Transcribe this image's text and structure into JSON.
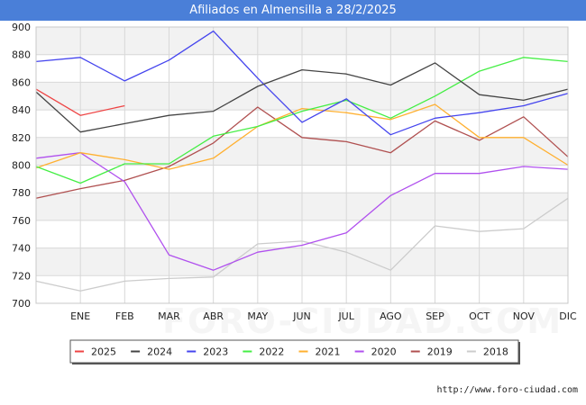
{
  "chart_data": {
    "type": "line",
    "title": "Afiliados en Almensilla a 28/2/2025",
    "categories": [
      "",
      "ENE",
      "FEB",
      "MAR",
      "ABR",
      "MAY",
      "JUN",
      "JUL",
      "AGO",
      "SEP",
      "OCT",
      "NOV",
      "DIC"
    ],
    "ylim": [
      700,
      900
    ],
    "yticks": [
      700,
      720,
      740,
      760,
      780,
      800,
      820,
      840,
      860,
      880,
      900
    ],
    "grid": true,
    "legend_position": "bottom",
    "series": [
      {
        "name": "2025",
        "color": "#ee4444",
        "values": [
          855,
          836,
          843,
          null,
          null,
          null,
          null,
          null,
          null,
          null,
          null,
          null,
          null
        ]
      },
      {
        "name": "2024",
        "color": "#444444",
        "values": [
          853,
          824,
          830,
          836,
          839,
          857,
          869,
          866,
          858,
          874,
          851,
          847,
          855
        ]
      },
      {
        "name": "2023",
        "color": "#4444ee",
        "values": [
          875,
          878,
          861,
          876,
          897,
          863,
          831,
          848,
          822,
          834,
          838,
          843,
          852
        ]
      },
      {
        "name": "2022",
        "color": "#44ee44",
        "values": [
          799,
          787,
          801,
          801,
          821,
          828,
          839,
          847,
          834,
          850,
          868,
          878,
          875
        ]
      },
      {
        "name": "2021",
        "color": "#ffb030",
        "values": [
          798,
          809,
          804,
          797,
          805,
          828,
          841,
          838,
          833,
          844,
          820,
          820,
          800
        ]
      },
      {
        "name": "2020",
        "color": "#b050ee",
        "values": [
          805,
          809,
          788,
          735,
          724,
          737,
          742,
          751,
          778,
          794,
          794,
          799,
          797
        ]
      },
      {
        "name": "2019",
        "color": "#b05050",
        "values": [
          776,
          783,
          789,
          799,
          816,
          842,
          820,
          817,
          809,
          832,
          818,
          835,
          806
        ]
      },
      {
        "name": "2018",
        "color": "#cccccc",
        "values": [
          716,
          709,
          716,
          718,
          719,
          743,
          745,
          737,
          724,
          756,
          752,
          754,
          776
        ]
      }
    ]
  },
  "footer": {
    "source": "http://www.foro-ciudad.com",
    "watermark": "FORO-CIUDAD.COM"
  }
}
